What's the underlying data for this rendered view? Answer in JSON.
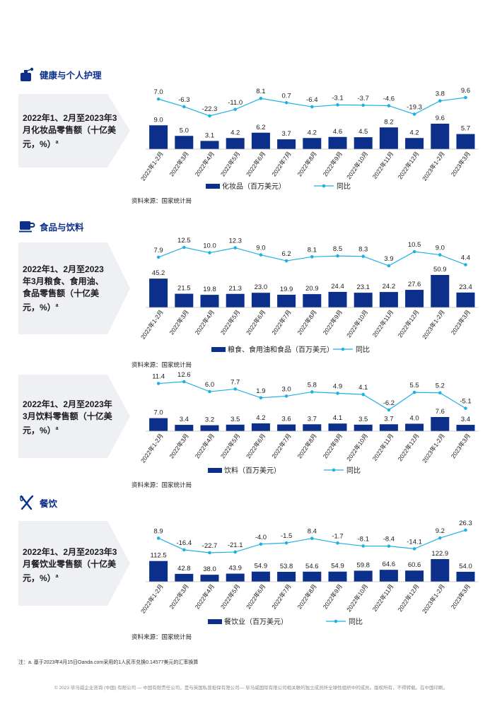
{
  "colors": {
    "bar": "#0b2f8a",
    "line": "#1fb1e5",
    "chevron": "#eef0f3",
    "heading": "#0b2f8a"
  },
  "sections": {
    "personal_care": {
      "title": "健康与个人护理",
      "icon": "perfume-bottle-icon"
    },
    "food_beverage": {
      "title": "食品与饮料",
      "icon": "coffee-cup-icon"
    },
    "dining": {
      "title": "餐饮",
      "icon": "fork-knife-icon"
    }
  },
  "panels": {
    "cosmetics": "2022年1、2月至2023年3月化妆品零售额（十亿美元，%）",
    "grain": "2022年1、2月至2023年3月粮食、食用油、食品零售额（十亿美元，%）",
    "drinks": "2022年1、2月至2023年3月饮料零售额（十亿美元，%）",
    "catering": "2022年1、2月至2023年3月餐饮业零售额（十亿美元，%）",
    "sup": "a"
  },
  "source_text": "资料来源：国家统计局",
  "note": "注：a. 基于2023年4月15日Oanda.com采用的1人民币兑换0.14577美元的汇率换算",
  "footer": "© 2023 毕马威企业咨询 (中国) 有限公司 — 中国有限责任公司，是与英国私营担保有限公司— 毕马威国际有限公司相关联的独立成员所全球性组织中的成员。版权所有，不得转载。在中国印刷。",
  "chart_data": [
    {
      "type": "bar",
      "categories": [
        "2022年1-2月",
        "2022年3月",
        "2022年4月",
        "2022年5月",
        "2022年6月",
        "2022年7月",
        "2022年8月",
        "2022年9月",
        "2022年10月",
        "2022年11月",
        "2022年12月",
        "2023年1-2月",
        "2023年3月"
      ],
      "series": [
        {
          "name": "化妆品（百万美元）",
          "type": "bar",
          "values": [
            9.0,
            5.0,
            3.1,
            4.2,
            6.2,
            3.7,
            4.2,
            4.6,
            4.5,
            8.2,
            4.2,
            9.6,
            5.7
          ],
          "labels": [
            "9.0",
            "5.0",
            "3.1",
            "4.2",
            "6.2",
            "3.7",
            "4.2",
            "4.6",
            "4.5",
            "8.2",
            "4.2",
            "9.6",
            "5.7"
          ]
        },
        {
          "name": "同比",
          "type": "line",
          "values": [
            7.0,
            -6.3,
            -22.3,
            -11.0,
            8.1,
            0.7,
            -6.4,
            -3.1,
            -3.7,
            -4.6,
            -19.3,
            3.8,
            9.6
          ],
          "labels": [
            "7.0",
            "-6.3",
            "-22.3",
            "-11.0",
            "8.1",
            "0.7",
            "-6.4",
            "-3.1",
            "-3.7",
            "-4.6",
            "-19.3",
            "3.8",
            "9.6"
          ]
        }
      ]
    },
    {
      "type": "bar",
      "categories": [
        "2022年1-2月",
        "2022年3月",
        "2022年4月",
        "2022年5月",
        "2022年6月",
        "2022年7月",
        "2022年8月",
        "2022年9月",
        "2022年10月",
        "2022年11月",
        "2022年12月",
        "2023年1-2月",
        "2023年3月"
      ],
      "series": [
        {
          "name": "粮食、食用油和食品（百万美元）",
          "type": "bar",
          "values": [
            45.2,
            21.5,
            19.8,
            21.3,
            23.0,
            19.9,
            20.9,
            24.4,
            23.1,
            24.2,
            27.6,
            50.9,
            23.4
          ],
          "labels": [
            "45.2",
            "21.5",
            "19.8",
            "21.3",
            "23.0",
            "19.9",
            "20.9",
            "24.4",
            "23.1",
            "24.2",
            "27.6",
            "50.9",
            "23.4"
          ]
        },
        {
          "name": "同比",
          "type": "line",
          "values": [
            7.9,
            12.5,
            10.0,
            12.3,
            9.0,
            6.2,
            8.1,
            8.5,
            8.3,
            3.9,
            10.5,
            9.0,
            4.4
          ],
          "labels": [
            "7.9",
            "12.5",
            "10.0",
            "12.3",
            "9.0",
            "6.2",
            "8.1",
            "8.5",
            "8.3",
            "3.9",
            "10.5",
            "9.0",
            "4.4"
          ]
        }
      ]
    },
    {
      "type": "bar",
      "categories": [
        "2022年1-2月",
        "2022年3月",
        "2022年4月",
        "2022年5月",
        "2022年6月",
        "2022年7月",
        "2022年8月",
        "2022年9月",
        "2022年10月",
        "2022年11月",
        "2022年12月",
        "2023年1-2月",
        "2023年3月"
      ],
      "series": [
        {
          "name": "饮料（百万美元）",
          "type": "bar",
          "values": [
            7.0,
            3.4,
            3.2,
            3.5,
            4.2,
            3.6,
            3.7,
            4.1,
            3.5,
            3.7,
            4.0,
            7.6,
            3.4
          ],
          "labels": [
            "7.0",
            "3.4",
            "3.2",
            "3.5",
            "4.2",
            "3.6",
            "3.7",
            "4.1",
            "3.5",
            "3.7",
            "4.0",
            "7.6",
            "3.4"
          ]
        },
        {
          "name": "同比",
          "type": "line",
          "values": [
            11.4,
            12.6,
            6.0,
            7.7,
            1.9,
            3.0,
            5.8,
            4.9,
            4.1,
            -6.2,
            5.5,
            5.2,
            -5.1
          ],
          "labels": [
            "11.4",
            "12.6",
            "6.0",
            "7.7",
            "1.9",
            "3.0",
            "5.8",
            "4.9",
            "4.1",
            "-6.2",
            "5.5",
            "5.2",
            "-5.1"
          ]
        }
      ]
    },
    {
      "type": "bar",
      "categories": [
        "2022年1-2月",
        "2022年3月",
        "2022年4月",
        "2022年5月",
        "2022年6月",
        "2022年7月",
        "2022年8月",
        "2022年9月",
        "2022年10月",
        "2022年11月",
        "2022年12月",
        "2023年1-2月",
        "2023年3月"
      ],
      "series": [
        {
          "name": "餐饮业（百万美元）",
          "type": "bar",
          "values": [
            112.5,
            42.8,
            38.0,
            43.9,
            54.9,
            53.8,
            54.6,
            54.9,
            59.8,
            64.6,
            60.6,
            122.9,
            54.0
          ],
          "labels": [
            "112.5",
            "42.8",
            "38.0",
            "43.9",
            "54.9",
            "53.8",
            "54.6",
            "54.9",
            "59.8",
            "64.6",
            "60.6",
            "122.9",
            "54.0"
          ]
        },
        {
          "name": "同比",
          "type": "line",
          "values": [
            8.9,
            -16.4,
            -22.7,
            -21.1,
            -4.0,
            -1.5,
            8.4,
            -1.7,
            -8.1,
            -8.4,
            -14.1,
            9.2,
            26.3
          ],
          "labels": [
            "8.9",
            "-16.4",
            "-22.7",
            "-21.1",
            "-4.0",
            "-1.5",
            "8.4",
            "-1.7",
            "-8.1",
            "-8.4",
            "-14.1",
            "9.2",
            "26.3"
          ]
        }
      ]
    }
  ]
}
